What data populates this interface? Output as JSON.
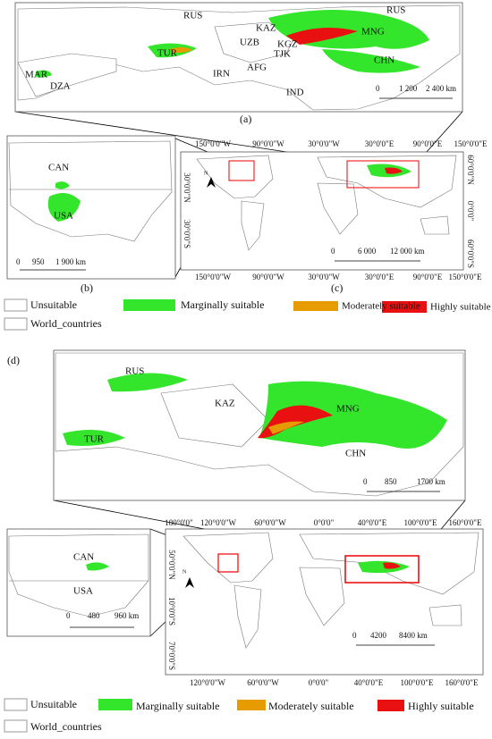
{
  "panels": {
    "a": {
      "label": "(a)",
      "places": [
        "RUS",
        "KAZ",
        "RUS",
        "MNG",
        "UZB",
        "KGZ",
        "TJK",
        "TUR",
        "AFG",
        "MAR",
        "DZA",
        "IRN",
        "CHN",
        "IND"
      ],
      "scale": [
        "0",
        "1 200",
        "2 400 km"
      ]
    },
    "b": {
      "label": "(b)",
      "places": [
        "CAN",
        "USA"
      ],
      "scale": [
        "0",
        "950",
        "1 900 km"
      ]
    },
    "c": {
      "label": "(c)",
      "north": "N",
      "scale": [
        "0",
        "6 000",
        "12 000 km"
      ],
      "lon_top": [
        "150°0'0\"W",
        "90°0'0\"W",
        "30°0'0\"W",
        "30°0'0\"E",
        "90°0'0\"E",
        "150°0'0\"E"
      ],
      "lon_bottom": [
        "150°0'0\"W",
        "90°0'0\"W",
        "30°0'0\"W",
        "30°0'0\"E",
        "90°0'0\"E",
        "150°0'0\"E"
      ],
      "lat_left": [
        "30°0'0\"N",
        "30°0'0\"S"
      ],
      "lat_right": [
        "60°0'0\"N",
        "0°0'0\"",
        "60°0'0\"S"
      ]
    },
    "d": {
      "label": "(d)",
      "places": [
        "RUS",
        "KAZ",
        "MNG",
        "TUR",
        "CHN"
      ],
      "scale": [
        "0",
        "850",
        "1700 km"
      ]
    },
    "e": {
      "places": [
        "CAN",
        "USA"
      ],
      "scale": [
        "0",
        "480",
        "960 km"
      ]
    },
    "f": {
      "north": "N",
      "scale": [
        "0",
        "4200",
        "8400 km"
      ],
      "lon_top": [
        "180°0'0\"",
        "120°0'0\"W",
        "60°0'0\"W",
        "0°0'0\"",
        "40°0'0\"E",
        "100°0'0\"E",
        "160°0'0\"E"
      ],
      "lon_bottom": [
        "120°0'0\"W",
        "60°0'0\"W",
        "0°0'0\"",
        "40°0'0\"E",
        "100°0'0\"E",
        "160°0'0\"E"
      ],
      "lat_left": [
        "50°0'0\"N",
        "10°0'0\"S",
        "70°0'0\"S"
      ]
    }
  },
  "legends": [
    {
      "items": [
        "Unsuitable",
        "Marginally suitable",
        "Moderately suitable",
        "Highly suitable",
        "World_countries"
      ]
    },
    {
      "items": [
        "Unsuitable",
        "Marginally suitable",
        "Moderately suitable",
        "Highly suitable",
        "World_countries"
      ]
    }
  ]
}
